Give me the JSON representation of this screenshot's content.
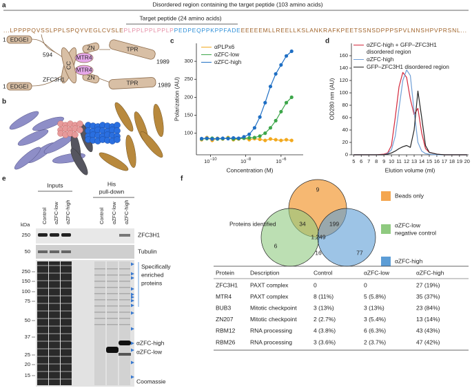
{
  "panel_a": {
    "label": "a",
    "title": "Disordered region containing the target peptide (103 amino acids)",
    "subtitle": "Target peptide (24 amino acids)",
    "sequence": [
      "...LPPPPQVSSLPPLSPQYVEGLCVSLE",
      "PLPPLPPLPPLP",
      "PEDPEQPPKPPFADE",
      "EEEEEMLLREELLKSLANKRAFKPEETSSNSDPPPSPVLNNSHPVPRSNL..."
    ],
    "sequence_colors": [
      "#a0632a",
      "#e58fa6",
      "#2f8fd8",
      "#a0632a"
    ],
    "cc": "CC",
    "upper": {
      "start": "1",
      "domain": "EDGEI",
      "position": "594",
      "zn": "ZN",
      "mtr4": "MTR4",
      "tpr": "TPR",
      "end": "1989"
    },
    "lower": {
      "start": "1",
      "domain": "EDGEI",
      "name": "ZFC3H1",
      "zn": "ZN",
      "mtr4": "MTR4",
      "tpr": "TPR",
      "end": "1989"
    }
  },
  "panel_b": {
    "label": "b"
  },
  "chart_data": [
    {
      "type": "line",
      "panel": "c",
      "xlabel": "Concentration (M)",
      "ylabel": "Polarization (AU)",
      "xscale": "log",
      "markers": true,
      "xlim": [
        1.6e-11,
        1.8e-05
      ],
      "ylim": [
        40,
        350
      ],
      "xticks": [
        {
          "value": 1e-10,
          "label": "10−10"
        },
        {
          "value": 1e-08,
          "label": "10−8"
        },
        {
          "value": 1e-06,
          "label": "10−6"
        }
      ],
      "yticks": [
        100,
        150,
        200,
        250,
        300
      ],
      "x": [
        3.16e-11,
        6.31e-11,
        1.26e-10,
        2.51e-10,
        5.01e-10,
        1e-09,
        2e-09,
        3.98e-09,
        7.94e-09,
        1.58e-08,
        3.16e-08,
        6.31e-08,
        1.26e-07,
        2.51e-07,
        5.01e-07,
        1e-06,
        2e-06,
        3.98e-06
      ],
      "series": [
        {
          "name": "αPLPx6",
          "color": "#f2a91e",
          "values": [
            82,
            88,
            80,
            86,
            84,
            88,
            82,
            84,
            86,
            82,
            85,
            83,
            80,
            84,
            82,
            80,
            82,
            80
          ]
        },
        {
          "name": "αZFC-low",
          "color": "#3da64a",
          "values": [
            84,
            85,
            86,
            84,
            85,
            86,
            84,
            85,
            86,
            87,
            88,
            92,
            100,
            115,
            135,
            160,
            185,
            200
          ]
        },
        {
          "name": "αZFC-high",
          "color": "#1f6fc4",
          "values": [
            85,
            86,
            84,
            85,
            86,
            85,
            87,
            86,
            90,
            97,
            115,
            145,
            185,
            230,
            265,
            290,
            315,
            328
          ]
        }
      ]
    },
    {
      "type": "line",
      "panel": "d",
      "xlabel": "Elution volume (ml)",
      "ylabel": "OD280 nm (AU)",
      "markers": false,
      "xlim": [
        4.7,
        20.2
      ],
      "ylim": [
        0,
        180
      ],
      "xticks": [
        5,
        6,
        7,
        8,
        9,
        10,
        11,
        12,
        13,
        14,
        15,
        16,
        17,
        18,
        19,
        20
      ],
      "yticks": [
        0,
        20,
        40,
        60,
        80,
        100,
        120,
        140,
        160
      ],
      "x": [
        5,
        6,
        7,
        8,
        9,
        9.5,
        10,
        10.5,
        11,
        11.5,
        12,
        12.5,
        13,
        13.5,
        14,
        14.5,
        15,
        16,
        17,
        18,
        19,
        20
      ],
      "series": [
        {
          "name": "αZFC-high + GFP–ZFC3H1 disordered region",
          "color": "#d3263a",
          "values": [
            0,
            0,
            0,
            0,
            1,
            3,
            15,
            60,
            110,
            133,
            125,
            90,
            65,
            75,
            35,
            10,
            4,
            1,
            0,
            0,
            0,
            0
          ]
        },
        {
          "name": "αZFC-high",
          "color": "#6f9fd6",
          "values": [
            0,
            0,
            0,
            0,
            0,
            2,
            8,
            30,
            75,
            120,
            137,
            128,
            70,
            20,
            6,
            2,
            1,
            0,
            0,
            0,
            0,
            0
          ]
        },
        {
          "name": "GFP–ZFC3H1 disordered region",
          "color": "#222222",
          "values": [
            0,
            0,
            0,
            0,
            0,
            1,
            3,
            6,
            10,
            13,
            15,
            12,
            40,
            103,
            60,
            15,
            4,
            1,
            0,
            0,
            0,
            0
          ]
        }
      ]
    }
  ],
  "panel_e": {
    "label": "e",
    "inputs": "Inputs",
    "pulldown": [
      "His",
      "pull-down"
    ],
    "lanes": [
      "Control",
      "αZFC-low",
      "αZFC-high",
      "Control",
      "αZFC-low",
      "αZFC-high"
    ],
    "unit": "kDa",
    "markers_top": [
      "250",
      "50"
    ],
    "markers_bottom": [
      "250",
      "150",
      "100",
      "75",
      "50",
      "37",
      "25",
      "20",
      "15"
    ],
    "blot_labels": [
      "ZFC3H1",
      "Tubulin"
    ],
    "enriched": [
      "Specifically",
      "enriched",
      "proteins"
    ],
    "band_labels": [
      "αZFC-high",
      "αZFC-low"
    ],
    "stain": "Coomassie"
  },
  "panel_f": {
    "label": "f",
    "venn_title": "Proteins identified",
    "venn": {
      "beads": "9",
      "beads_low": "34",
      "beads_high": "199",
      "all": "1,249",
      "low": "6",
      "low_high": "16",
      "high": "77"
    },
    "legend": [
      {
        "name": "Beads only",
        "color": "#f4a64f"
      },
      {
        "name": [
          "αZFC-low",
          "negative control"
        ],
        "color": "#8fca80"
      },
      {
        "name": "αZFC-high",
        "color": "#5c9dd6"
      }
    ],
    "table": {
      "header": [
        "Protein",
        "Description",
        "Control",
        "αZFC-low",
        "αZFC-high"
      ],
      "rows": [
        [
          "ZFC3H1",
          "PAXT complex",
          "0",
          "0",
          "27 (19%)"
        ],
        [
          "MTR4",
          "PAXT complex",
          "8 (11%)",
          "5 (5.8%)",
          "35 (37%)"
        ],
        [
          "BUB3",
          "Mitotic checkpoint",
          "3 (13%)",
          "3 (13%)",
          "23 (84%)"
        ],
        [
          "ZN207",
          "Mitotic checkpoint",
          "2 (2.7%)",
          "3 (5.4%)",
          "13 (14%)"
        ],
        [
          "RBM12",
          "RNA processing",
          "4 (3.8%)",
          "6 (6.3%)",
          "43 (43%)"
        ],
        [
          "RBM26",
          "RNA processing",
          "3 (3.6%)",
          "2 (3.7%)",
          "47 (42%)"
        ]
      ]
    }
  }
}
